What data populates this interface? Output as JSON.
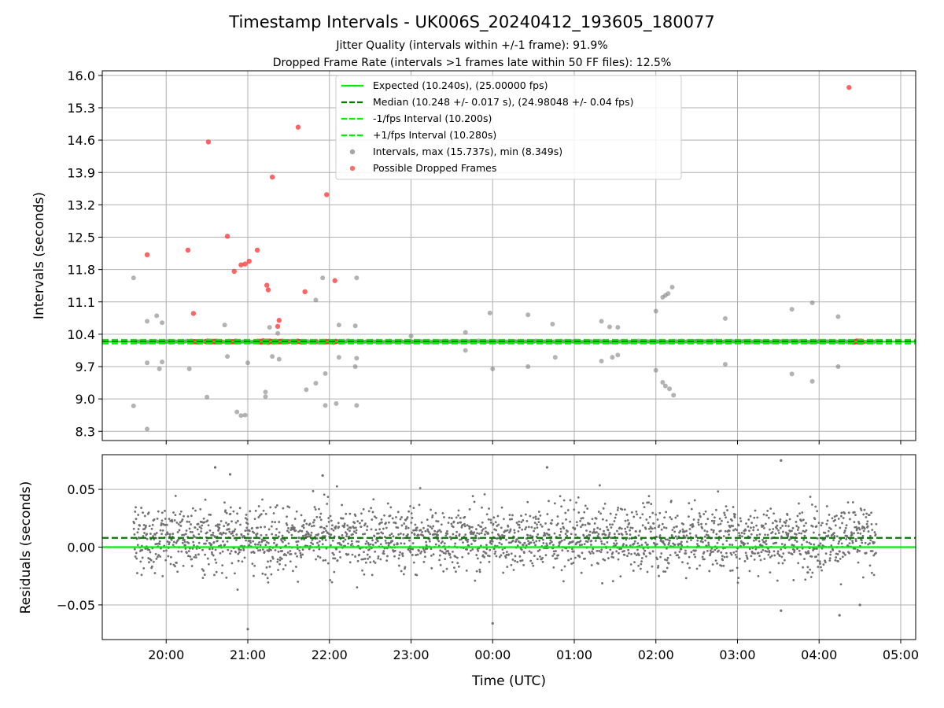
{
  "title": "Timestamp Intervals - UK006S_20240412_193605_180077",
  "subtitle_lines": [
    "Jitter Quality (intervals within +/-1 frame): 91.9%",
    "Dropped Frame Rate (intervals >1 frames late within 50 FF files): 12.5%"
  ],
  "chart_data": [
    {
      "type": "scatter",
      "panel": "top",
      "ylabel": "Intervals (seconds)",
      "ylim": [
        8.1,
        16.1
      ],
      "yticks": [
        "8.3",
        "9.0",
        "9.7",
        "10.4",
        "11.1",
        "11.8",
        "12.5",
        "13.2",
        "13.9",
        "14.6",
        "15.3",
        "16.0"
      ],
      "grid": true,
      "legend_position": "top-center",
      "reference_lines": [
        {
          "name": "Expected (10.240s), (25.00000 fps)",
          "value": 10.24,
          "style": "solid",
          "color": "#00ee00"
        },
        {
          "name": "Median (10.248 +/- 0.017 s), (24.98048 +/- 0.04 fps)",
          "value": 10.248,
          "style": "dashed",
          "color": "#007a00"
        },
        {
          "name": "-1/fps Interval (10.200s)",
          "value": 10.2,
          "style": "dashed",
          "color": "#00ee00"
        },
        {
          "name": "+1/fps Interval (10.280s)",
          "value": 10.28,
          "style": "dashed",
          "color": "#00ee00"
        }
      ],
      "series": [
        {
          "name": "Intervals, max (15.737s), min (8.349s)",
          "color": "#808080",
          "points": [
            [
              "19:36",
              11.62
            ],
            [
              "19:36",
              8.85
            ],
            [
              "19:46",
              10.68
            ],
            [
              "19:46",
              9.78
            ],
            [
              "19:46",
              8.35
            ],
            [
              "19:53",
              10.8
            ],
            [
              "19:55",
              9.65
            ],
            [
              "19:57",
              10.65
            ],
            [
              "19:57",
              9.8
            ],
            [
              "20:17",
              9.65
            ],
            [
              "20:30",
              9.04
            ],
            [
              "20:43",
              10.6
            ],
            [
              "20:45",
              9.92
            ],
            [
              "20:52",
              8.72
            ],
            [
              "20:55",
              8.64
            ],
            [
              "20:58",
              8.65
            ],
            [
              "21:00",
              9.78
            ],
            [
              "21:13",
              9.15
            ],
            [
              "21:13",
              9.05
            ],
            [
              "21:16",
              10.55
            ],
            [
              "21:18",
              9.92
            ],
            [
              "21:22",
              10.42
            ],
            [
              "21:23",
              9.86
            ],
            [
              "21:43",
              9.2
            ],
            [
              "21:50",
              11.14
            ],
            [
              "21:50",
              9.34
            ],
            [
              "21:55",
              11.62
            ],
            [
              "21:57",
              9.55
            ],
            [
              "21:57",
              8.86
            ],
            [
              "22:05",
              8.9
            ],
            [
              "22:07",
              10.6
            ],
            [
              "22:07",
              9.9
            ],
            [
              "22:19",
              9.7
            ],
            [
              "22:19",
              10.58
            ],
            [
              "22:20",
              9.88
            ],
            [
              "22:20",
              11.62
            ],
            [
              "22:20",
              8.86
            ],
            [
              "23:00",
              10.36
            ],
            [
              "23:40",
              10.44
            ],
            [
              "23:40",
              10.05
            ],
            [
              "23:58",
              10.86
            ],
            [
              "24:00",
              9.65
            ],
            [
              "24:26",
              10.82
            ],
            [
              "24:26",
              9.7
            ],
            [
              "24:44",
              10.62
            ],
            [
              "24:46",
              9.9
            ],
            [
              "25:20",
              10.68
            ],
            [
              "25:20",
              9.82
            ],
            [
              "25:26",
              10.56
            ],
            [
              "25:28",
              9.9
            ],
            [
              "25:32",
              10.55
            ],
            [
              "25:32",
              9.95
            ],
            [
              "26:00",
              10.9
            ],
            [
              "26:00",
              9.62
            ],
            [
              "26:05",
              11.2
            ],
            [
              "26:07",
              11.24
            ],
            [
              "26:09",
              11.28
            ],
            [
              "26:12",
              11.42
            ],
            [
              "26:05",
              9.36
            ],
            [
              "26:07",
              9.28
            ],
            [
              "26:10",
              9.22
            ],
            [
              "26:13",
              9.08
            ],
            [
              "26:51",
              10.74
            ],
            [
              "26:51",
              9.75
            ],
            [
              "27:40",
              10.94
            ],
            [
              "27:40",
              9.54
            ],
            [
              "27:55",
              11.08
            ],
            [
              "27:55",
              9.38
            ],
            [
              "28:14",
              10.78
            ],
            [
              "28:14",
              9.7
            ],
            [
              "20:00",
              10.24
            ],
            [
              "20:30",
              10.25
            ],
            [
              "21:00",
              10.24
            ],
            [
              "21:30",
              10.24
            ],
            [
              "22:00",
              10.25
            ],
            [
              "22:30",
              10.24
            ],
            [
              "23:00",
              10.24
            ],
            [
              "23:30",
              10.25
            ],
            [
              "24:00",
              10.24
            ],
            [
              "24:30",
              10.24
            ],
            [
              "25:00",
              10.25
            ],
            [
              "25:30",
              10.24
            ],
            [
              "26:00",
              10.24
            ],
            [
              "26:30",
              10.25
            ],
            [
              "27:00",
              10.24
            ],
            [
              "27:30",
              10.24
            ],
            [
              "28:00",
              10.25
            ],
            [
              "28:30",
              10.24
            ]
          ]
        },
        {
          "name": "Possible Dropped Frames",
          "color": "#ff3030",
          "points": [
            [
              "19:46",
              12.12
            ],
            [
              "20:16",
              12.22
            ],
            [
              "20:20",
              10.85
            ],
            [
              "20:31",
              14.56
            ],
            [
              "20:45",
              12.52
            ],
            [
              "20:50",
              11.76
            ],
            [
              "20:55",
              11.9
            ],
            [
              "20:58",
              11.92
            ],
            [
              "21:01",
              11.98
            ],
            [
              "21:07",
              12.22
            ],
            [
              "21:14",
              11.46
            ],
            [
              "21:15",
              11.36
            ],
            [
              "21:18",
              13.8
            ],
            [
              "21:22",
              10.57
            ],
            [
              "21:23",
              10.7
            ],
            [
              "21:37",
              14.88
            ],
            [
              "21:42",
              11.32
            ],
            [
              "21:58",
              13.42
            ],
            [
              "22:04",
              11.56
            ],
            [
              "28:22",
              15.74
            ],
            [
              "20:20",
              10.24
            ],
            [
              "20:30",
              10.24
            ],
            [
              "20:40",
              10.24
            ],
            [
              "20:50",
              10.24
            ],
            [
              "21:10",
              10.24
            ],
            [
              "21:20",
              10.24
            ],
            [
              "21:30",
              10.24
            ],
            [
              "21:40",
              10.24
            ],
            [
              "21:50",
              10.24
            ],
            [
              "22:00",
              10.24
            ],
            [
              "28:25",
              10.24
            ],
            [
              "28:30",
              10.24
            ]
          ]
        }
      ]
    },
    {
      "type": "scatter",
      "panel": "bottom",
      "xlabel": "Time (UTC)",
      "ylabel": "Residuals (seconds)",
      "ylim": [
        -0.08,
        0.08
      ],
      "yticks": [
        "−0.05",
        "0.00",
        "0.05"
      ],
      "xticks": [
        "20:00",
        "21:00",
        "22:00",
        "23:00",
        "00:00",
        "01:00",
        "02:00",
        "03:00",
        "04:00",
        "05:00"
      ],
      "xlim": [
        "19:13",
        "29:11"
      ],
      "data_range": [
        "19:36",
        "28:42"
      ],
      "grid": true,
      "reference_lines": [
        {
          "value": 0.0,
          "style": "solid",
          "color": "#00ee00"
        },
        {
          "value": 0.008,
          "style": "dashed",
          "color": "#007a00"
        }
      ],
      "series": [
        {
          "color": "#707070",
          "sample_points": [
            [
              "20:36",
              0.069
            ],
            [
              "20:47",
              0.063
            ],
            [
              "21:00",
              -0.071
            ],
            [
              "21:55",
              0.062
            ],
            [
              "24:00",
              -0.066
            ],
            [
              "24:40",
              0.069
            ],
            [
              "27:32",
              0.075
            ],
            [
              "27:32",
              -0.055
            ],
            [
              "28:15",
              -0.059
            ],
            [
              "28:30",
              -0.05
            ]
          ],
          "residual_spread_sd": 0.02,
          "point_count": 2400
        }
      ]
    }
  ],
  "colors": {
    "expected": "#00ee00",
    "median": "#007a00",
    "interval": "#808080",
    "dropped": "#ff3030",
    "residual": "#707070"
  }
}
